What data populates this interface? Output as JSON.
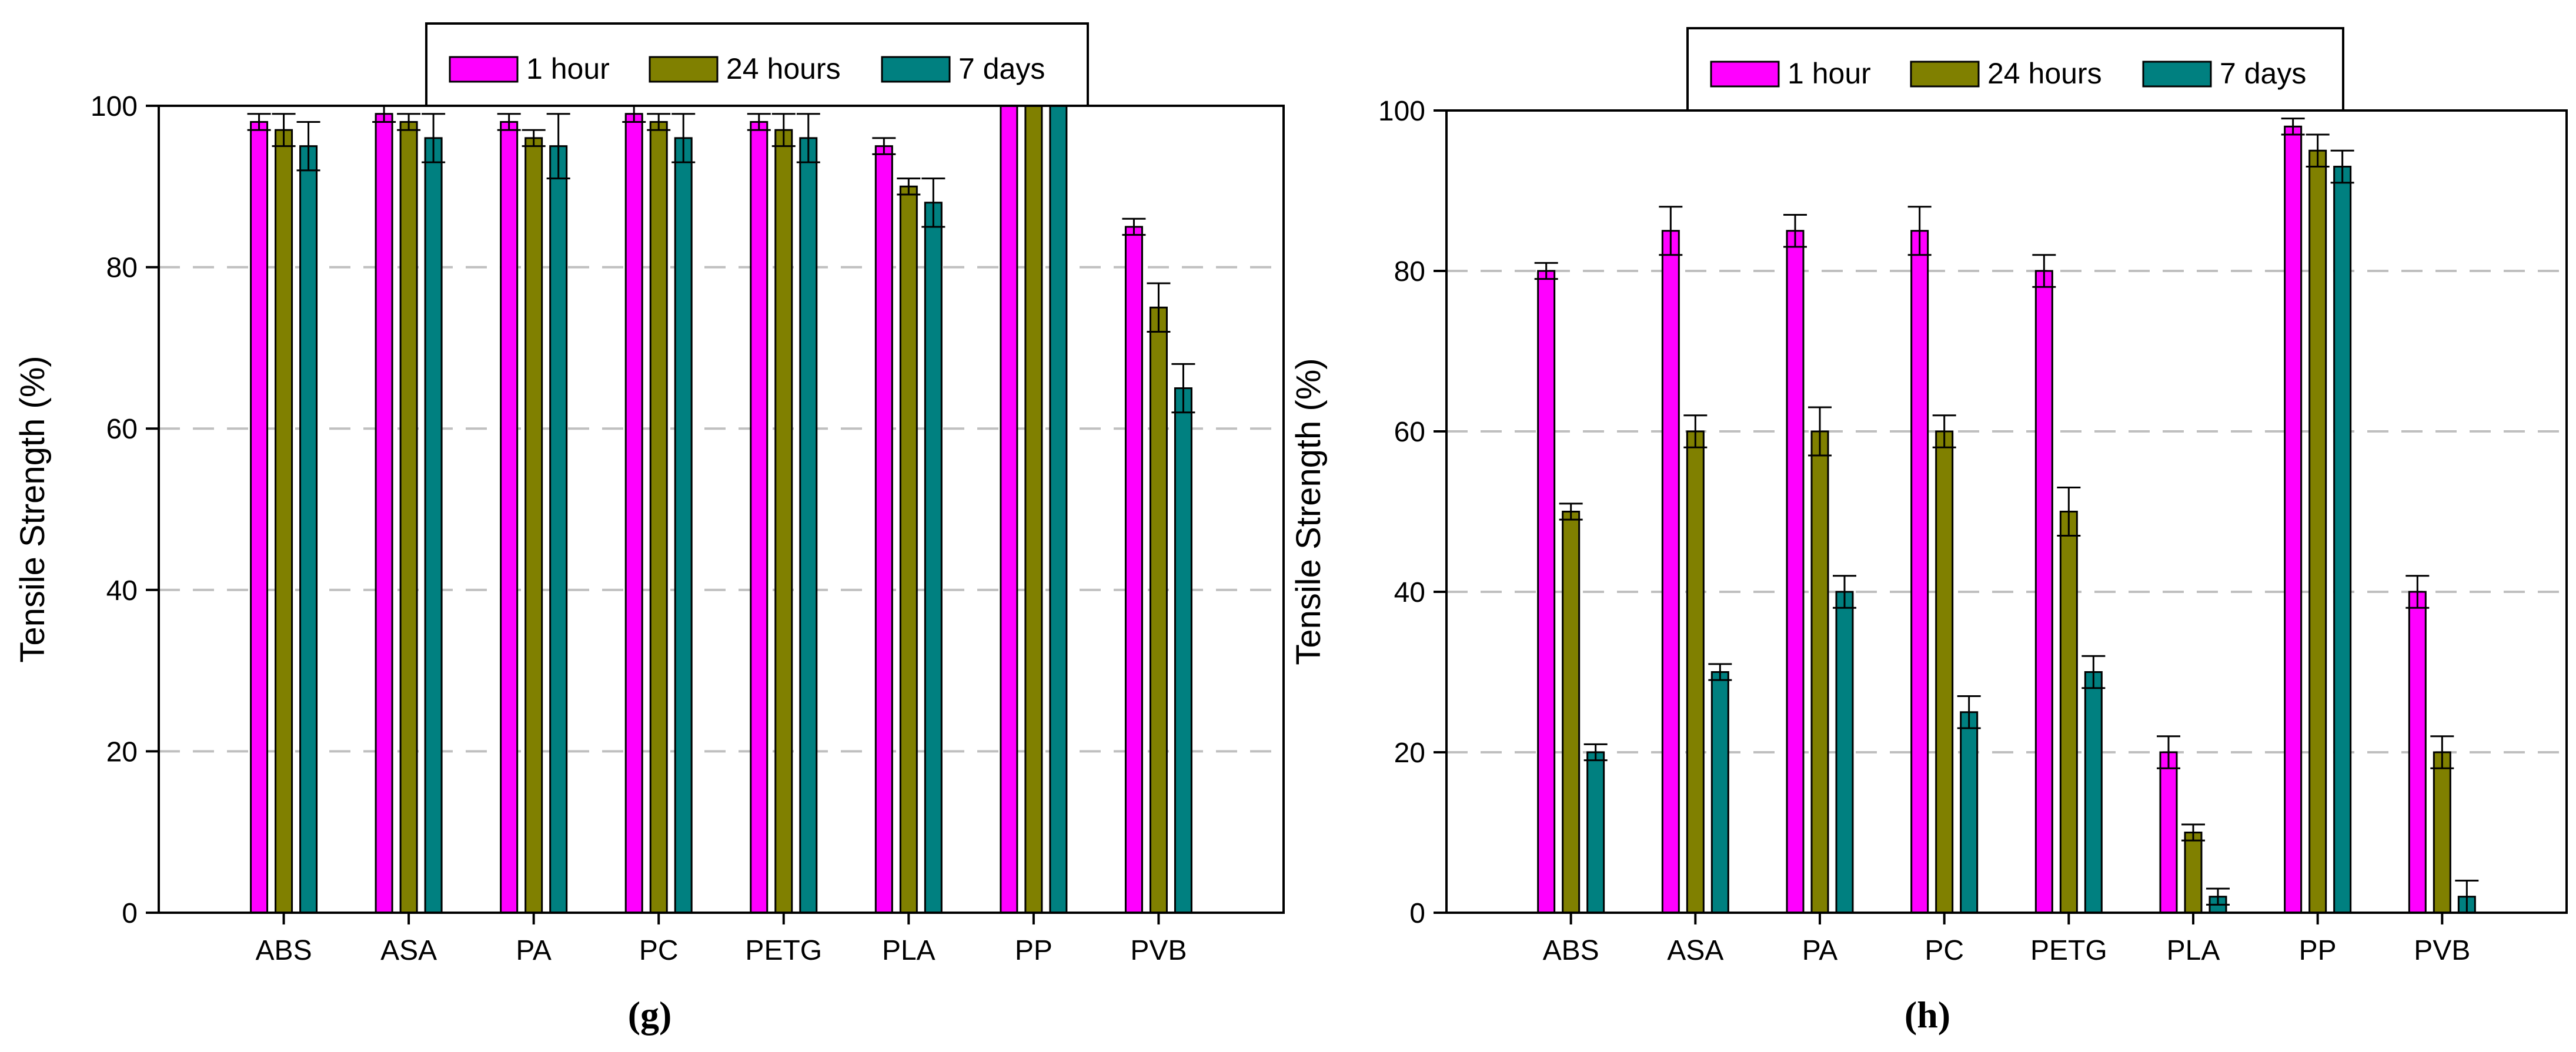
{
  "chart_data": [
    {
      "type": "bar",
      "panel_label": "(g)",
      "ylabel": "Tensile Strength (%)",
      "ylim": [
        0,
        100
      ],
      "yticks": [
        0,
        20,
        40,
        60,
        80,
        100
      ],
      "grid": "horizontal dashed",
      "legend_position": "top-center",
      "categories": [
        "ABS",
        "ASA",
        "PA",
        "PC",
        "PETG",
        "PLA",
        "PP",
        "PVB"
      ],
      "series": [
        {
          "name": "1 hour",
          "color": "#FF00FF",
          "values": [
            98,
            99,
            98,
            99,
            98,
            95,
            100,
            85
          ],
          "errors": [
            1,
            1,
            1,
            1,
            1,
            1,
            0,
            1
          ]
        },
        {
          "name": "24 hours",
          "color": "#808000",
          "values": [
            97,
            98,
            96,
            98,
            97,
            90,
            100,
            75
          ],
          "errors": [
            2,
            1,
            1,
            1,
            2,
            1,
            0,
            3
          ]
        },
        {
          "name": "7 days",
          "color": "#008080",
          "values": [
            95,
            96,
            95,
            96,
            96,
            88,
            100,
            65
          ],
          "errors": [
            3,
            3,
            4,
            3,
            3,
            3,
            0,
            3
          ]
        }
      ]
    },
    {
      "type": "bar",
      "panel_label": "(h)",
      "ylabel": "Tensile Strength (%)",
      "ylim": [
        0,
        100
      ],
      "yticks": [
        0,
        20,
        40,
        60,
        80,
        100
      ],
      "grid": "horizontal dashed",
      "legend_position": "top-center",
      "categories": [
        "ABS",
        "ASA",
        "PA",
        "PC",
        "PETG",
        "PLA",
        "PP",
        "PVB"
      ],
      "series": [
        {
          "name": "1 hour",
          "color": "#FF00FF",
          "values": [
            80,
            85,
            85,
            85,
            80,
            20,
            98,
            40
          ],
          "errors": [
            1,
            3,
            2,
            3,
            2,
            2,
            1,
            2
          ]
        },
        {
          "name": "24 hours",
          "color": "#808000",
          "values": [
            50,
            60,
            60,
            60,
            50,
            10,
            95,
            20
          ],
          "errors": [
            1,
            2,
            3,
            2,
            3,
            1,
            2,
            2
          ]
        },
        {
          "name": "7 days",
          "color": "#008080",
          "values": [
            20,
            30,
            40,
            25,
            30,
            2,
            93,
            2
          ],
          "errors": [
            1,
            1,
            2,
            2,
            2,
            1,
            2,
            2
          ]
        }
      ]
    }
  ]
}
